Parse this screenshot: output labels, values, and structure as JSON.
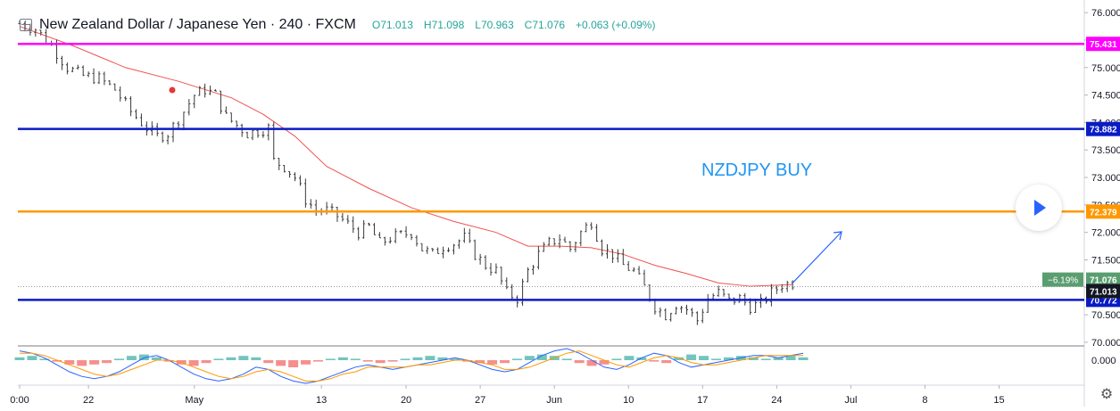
{
  "header": {
    "title": "New Zealand Dollar / Japanese Yen · 240 · FXCM",
    "open": "O71.013",
    "high": "H71.098",
    "low": "L70.963",
    "close": "C71.076",
    "change": "+0.063 (+0.09%)"
  },
  "annotation_text": "NZDJPY BUY",
  "chart_data": {
    "type": "candlestick",
    "symbol": "NZDJPY",
    "timeframe": "240",
    "source": "FXCM",
    "x_tick_labels": [
      "0:00",
      "22",
      "May",
      "13",
      "20",
      "27",
      "Jun",
      "10",
      "17",
      "24",
      "Jul",
      "8",
      "15"
    ],
    "y_ticks": [
      70.0,
      70.5,
      71.0,
      71.5,
      72.0,
      72.5,
      73.0,
      73.5,
      74.0,
      74.5,
      75.0,
      75.5,
      76.0
    ],
    "y_tick_labels": [
      "70.000",
      "70.500",
      "71.000",
      "71.500",
      "72.000",
      "72.500",
      "73.000",
      "73.500",
      "74.000",
      "74.500",
      "75.000",
      "75.500",
      "76.000"
    ],
    "ylim": [
      69.95,
      76.1
    ],
    "price_path": [
      [
        0,
        75.8
      ],
      [
        3,
        75.7
      ],
      [
        6,
        75.4
      ],
      [
        9,
        75.0
      ],
      [
        12,
        74.85
      ],
      [
        15,
        74.8
      ],
      [
        18,
        74.6
      ],
      [
        21,
        74.2
      ],
      [
        24,
        73.9
      ],
      [
        26,
        73.75
      ],
      [
        28,
        73.8
      ],
      [
        31,
        74.2
      ],
      [
        33,
        74.5
      ],
      [
        35,
        74.6
      ],
      [
        37,
        74.5
      ],
      [
        39,
        74.1
      ],
      [
        41,
        73.95
      ],
      [
        43,
        73.8
      ],
      [
        45,
        73.85
      ],
      [
        47,
        73.9
      ],
      [
        48,
        73.3
      ],
      [
        50,
        73.2
      ],
      [
        52,
        73.0
      ],
      [
        54,
        72.6
      ],
      [
        56,
        72.4
      ],
      [
        58,
        72.4
      ],
      [
        60,
        72.3
      ],
      [
        62,
        72.15
      ],
      [
        64,
        72.0
      ],
      [
        66,
        72.1
      ],
      [
        68,
        71.8
      ],
      [
        70,
        71.9
      ],
      [
        72,
        71.95
      ],
      [
        74,
        72.0
      ],
      [
        76,
        71.7
      ],
      [
        78,
        71.6
      ],
      [
        80,
        71.75
      ],
      [
        82,
        71.8
      ],
      [
        84,
        71.9
      ],
      [
        86,
        71.6
      ],
      [
        88,
        71.4
      ],
      [
        90,
        71.3
      ],
      [
        92,
        70.9
      ],
      [
        94,
        70.8
      ],
      [
        96,
        71.3
      ],
      [
        98,
        71.6
      ],
      [
        100,
        71.8
      ],
      [
        102,
        71.9
      ],
      [
        104,
        71.7
      ],
      [
        106,
        72.0
      ],
      [
        108,
        72.2
      ],
      [
        110,
        71.7
      ],
      [
        112,
        71.6
      ],
      [
        114,
        71.4
      ],
      [
        116,
        71.3
      ],
      [
        118,
        71.0
      ],
      [
        120,
        70.65
      ],
      [
        122,
        70.5
      ],
      [
        124,
        70.7
      ],
      [
        126,
        70.6
      ],
      [
        128,
        70.4
      ],
      [
        130,
        70.8
      ],
      [
        132,
        70.9
      ],
      [
        134,
        70.75
      ],
      [
        136,
        70.8
      ],
      [
        138,
        70.65
      ],
      [
        140,
        70.7
      ],
      [
        142,
        70.9
      ],
      [
        144,
        71.05
      ],
      [
        146,
        71.08
      ]
    ],
    "moving_average": [
      [
        0,
        75.75
      ],
      [
        10,
        75.4
      ],
      [
        20,
        75.0
      ],
      [
        30,
        74.75
      ],
      [
        40,
        74.45
      ],
      [
        46,
        74.15
      ],
      [
        52,
        73.75
      ],
      [
        58,
        73.2
      ],
      [
        66,
        72.8
      ],
      [
        74,
        72.45
      ],
      [
        82,
        72.2
      ],
      [
        90,
        72.0
      ],
      [
        96,
        71.75
      ],
      [
        102,
        71.75
      ],
      [
        108,
        71.72
      ],
      [
        114,
        71.6
      ],
      [
        120,
        71.4
      ],
      [
        126,
        71.25
      ],
      [
        132,
        71.08
      ],
      [
        138,
        71.02
      ],
      [
        146,
        71.05
      ]
    ],
    "series": [
      {
        "name": "",
        "value": 75.431,
        "label": "75.431",
        "color": "#ff00ff"
      },
      {
        "name": "",
        "value": 73.882,
        "label": "73.882",
        "color": "#0a1bc5"
      },
      {
        "name": "",
        "value": 72.379,
        "label": "72.379",
        "color": "#ff9800"
      },
      {
        "name": "",
        "value": 70.772,
        "label": "70.772",
        "color": "#0a1bc5"
      }
    ],
    "price_labels": [
      {
        "value": 71.076,
        "label": "71.076",
        "color": "#5a9e6f"
      },
      {
        "value": 71.013,
        "label": "71.013",
        "color": "#131722"
      }
    ],
    "change_badge": "−6.19%",
    "arrow_target": [
      156,
      72.07
    ],
    "oscillator": {
      "zero_label": "0.000",
      "histogram": [
        2,
        3,
        1,
        -1,
        -3,
        -4,
        -3,
        -2,
        1,
        3,
        4,
        2,
        -1,
        -3,
        -4,
        -2,
        1,
        2,
        3,
        2,
        -2,
        -4,
        -5,
        -3,
        -1,
        1,
        2,
        1,
        -1,
        -2,
        -1,
        1,
        2,
        3,
        2,
        1,
        -1,
        -2,
        -3,
        -2,
        1,
        3,
        4,
        3,
        1,
        -2,
        -4,
        -3,
        1,
        3,
        2,
        -1,
        -2,
        2,
        4,
        3,
        1,
        2,
        3,
        2,
        1,
        2,
        3,
        2
      ],
      "macd": [
        4,
        3,
        1,
        -2,
        -5,
        -7,
        -8,
        -7,
        -5,
        -2,
        1,
        2,
        0,
        -3,
        -6,
        -8,
        -9,
        -8,
        -6,
        -3,
        -4,
        -7,
        -9,
        -10,
        -9,
        -7,
        -5,
        -3,
        -2,
        -3,
        -4,
        -3,
        -2,
        -1,
        0,
        1,
        0,
        -2,
        -4,
        -5,
        -4,
        -1,
        2,
        4,
        5,
        3,
        0,
        -3,
        -4,
        -2,
        1,
        3,
        2,
        -1,
        -3,
        -2,
        -1,
        0,
        1,
        2,
        2,
        1,
        2,
        3
      ],
      "signal": [
        3,
        3,
        2,
        0,
        -2,
        -4,
        -6,
        -7,
        -6,
        -4,
        -2,
        0,
        0,
        -1,
        -3,
        -5,
        -7,
        -8,
        -7,
        -5,
        -4,
        -5,
        -7,
        -9,
        -9,
        -8,
        -6,
        -5,
        -3,
        -3,
        -3,
        -3,
        -2,
        -2,
        -1,
        0,
        0,
        -1,
        -2,
        -4,
        -4,
        -3,
        -1,
        1,
        3,
        4,
        2,
        0,
        -2,
        -3,
        -1,
        1,
        2,
        1,
        -1,
        -2,
        -2,
        -1,
        0,
        1,
        2,
        2,
        2,
        2
      ]
    }
  }
}
